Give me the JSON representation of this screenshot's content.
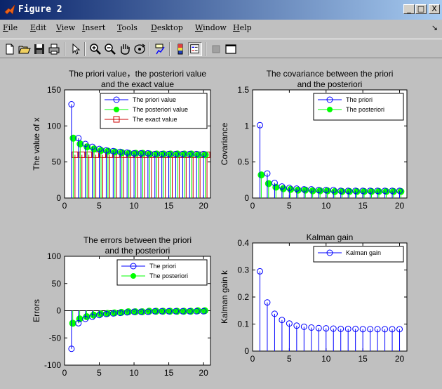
{
  "window": {
    "title": "Figure 2",
    "buttons": {
      "minimize": "_",
      "maximize": "□",
      "close": "X"
    }
  },
  "menu": {
    "items": [
      {
        "first": "F",
        "rest": "ile"
      },
      {
        "first": "E",
        "rest": "dit"
      },
      {
        "first": "V",
        "rest": "iew"
      },
      {
        "first": "I",
        "rest": "nsert"
      },
      {
        "first": "T",
        "rest": "ools"
      },
      {
        "first": "D",
        "rest": "esktop"
      },
      {
        "first": "W",
        "rest": "indow"
      },
      {
        "first": "H",
        "rest": "elp"
      }
    ],
    "overflow": "↘"
  },
  "toolbar": {
    "icons": [
      "new-file-icon",
      "open-folder-icon",
      "save-icon",
      "print-icon",
      "pointer-icon",
      "zoom-in-icon",
      "zoom-out-icon",
      "pan-hand-icon",
      "rotate-3d-icon",
      "data-cursor-icon",
      "colorbar-icon",
      "legend-icon",
      "grid-icon",
      "plot-tools-icon"
    ]
  },
  "colors": {
    "priori": "#0000ff",
    "posteriori": "#00ff00",
    "exact": "#cc0000",
    "kalman": "#0000ff"
  },
  "chart_data": [
    {
      "type": "scatter",
      "subtype": "stem",
      "title": [
        "The priori value，the posteriori value",
        "and the exact value"
      ],
      "xlabel": "",
      "ylabel": "The value of x",
      "xlim": [
        0,
        21
      ],
      "ylim": [
        0,
        150
      ],
      "xticks": [
        "0",
        "5",
        "10",
        "15",
        "20"
      ],
      "yticks": [
        "0",
        "50",
        "100",
        "150"
      ],
      "legend": {
        "placement": "top-right",
        "entries": [
          "The priori value",
          "The posteriori value",
          "The exact value"
        ]
      },
      "x": [
        1,
        2,
        3,
        4,
        5,
        6,
        7,
        8,
        9,
        10,
        11,
        12,
        13,
        14,
        15,
        16,
        17,
        18,
        19,
        20
      ],
      "series": [
        {
          "name": "The priori value",
          "marker": "circle",
          "color": "#0000ff",
          "values": [
            130,
            83,
            75,
            71,
            68,
            66,
            65,
            64,
            63,
            62,
            62,
            62,
            61,
            61,
            61,
            61,
            61,
            61,
            61,
            61
          ]
        },
        {
          "name": "The posteriori value",
          "marker": "filled-circle",
          "color": "#00ff00",
          "values": [
            83,
            75,
            71,
            68,
            66,
            65,
            64,
            63,
            62,
            62,
            62,
            61,
            61,
            61,
            61,
            61,
            61,
            61,
            60,
            60
          ]
        },
        {
          "name": "The exact value",
          "marker": "square",
          "color": "#cc0000",
          "values": [
            60,
            60,
            60,
            60,
            60,
            60,
            60,
            60,
            60,
            60,
            60,
            60,
            60,
            60,
            60,
            60,
            60,
            60,
            60,
            60
          ]
        }
      ]
    },
    {
      "type": "scatter",
      "subtype": "stem",
      "title": [
        "The covariance between the priori",
        "and the posteriori"
      ],
      "xlabel": "",
      "ylabel": "Covariance",
      "xlim": [
        0,
        21
      ],
      "ylim": [
        0,
        1.5
      ],
      "xticks": [
        "0",
        "5",
        "10",
        "15",
        "20"
      ],
      "yticks": [
        "0",
        "0.5",
        "1",
        "1.5"
      ],
      "legend": {
        "placement": "top-right",
        "entries": [
          "The priori",
          "The posteriori"
        ]
      },
      "x": [
        1,
        2,
        3,
        4,
        5,
        6,
        7,
        8,
        9,
        10,
        11,
        12,
        13,
        14,
        15,
        16,
        17,
        18,
        19,
        20
      ],
      "series": [
        {
          "name": "The priori",
          "marker": "circle",
          "color": "#0000ff",
          "values": [
            1.01,
            0.34,
            0.21,
            0.16,
            0.14,
            0.13,
            0.12,
            0.12,
            0.11,
            0.11,
            0.11,
            0.1,
            0.1,
            0.1,
            0.1,
            0.1,
            0.1,
            0.1,
            0.1,
            0.1
          ]
        },
        {
          "name": "The posteriori",
          "marker": "filled-circle",
          "color": "#00ff00",
          "values": [
            0.32,
            0.2,
            0.15,
            0.13,
            0.12,
            0.11,
            0.11,
            0.1,
            0.1,
            0.1,
            0.09,
            0.09,
            0.09,
            0.09,
            0.09,
            0.09,
            0.09,
            0.09,
            0.09,
            0.09
          ]
        }
      ]
    },
    {
      "type": "scatter",
      "subtype": "stem",
      "title": [
        "The errors between the priori",
        "and the posteriori"
      ],
      "xlabel": "",
      "ylabel": "Errors",
      "xlim": [
        0,
        21
      ],
      "ylim": [
        -100,
        100
      ],
      "xticks": [
        "0",
        "5",
        "10",
        "15",
        "20"
      ],
      "yticks": [
        "-100",
        "-50",
        "0",
        "50",
        "100"
      ],
      "legend": {
        "placement": "top-right",
        "entries": [
          "The priori",
          "The posteriori"
        ]
      },
      "x": [
        1,
        2,
        3,
        4,
        5,
        6,
        7,
        8,
        9,
        10,
        11,
        12,
        13,
        14,
        15,
        16,
        17,
        18,
        19,
        20
      ],
      "series": [
        {
          "name": "The priori",
          "marker": "circle",
          "color": "#0000ff",
          "values": [
            -70,
            -23,
            -15,
            -11,
            -8,
            -6,
            -5,
            -4,
            -3,
            -2,
            -2,
            -2,
            -1,
            -1,
            -1,
            -1,
            -1,
            -1,
            -1,
            -1
          ]
        },
        {
          "name": "The posteriori",
          "marker": "filled-circle",
          "color": "#00ff00",
          "values": [
            -23,
            -15,
            -11,
            -8,
            -6,
            -5,
            -4,
            -3,
            -2,
            -2,
            -2,
            -1,
            -1,
            -1,
            -1,
            -1,
            -1,
            -1,
            0,
            0
          ]
        }
      ]
    },
    {
      "type": "scatter",
      "subtype": "stem",
      "title": [
        "Kalman gain"
      ],
      "xlabel": "",
      "ylabel": "Kalman gain k",
      "xlim": [
        0,
        21
      ],
      "ylim": [
        0,
        0.4
      ],
      "xticks": [
        "0",
        "5",
        "10",
        "15",
        "20"
      ],
      "yticks": [
        "0",
        "0.1",
        "0.2",
        "0.3",
        "0.4"
      ],
      "legend": {
        "placement": "top-right",
        "entries": [
          "Kalman gain"
        ]
      },
      "x": [
        1,
        2,
        3,
        4,
        5,
        6,
        7,
        8,
        9,
        10,
        11,
        12,
        13,
        14,
        15,
        16,
        17,
        18,
        19,
        20
      ],
      "series": [
        {
          "name": "Kalman gain",
          "marker": "circle",
          "color": "#0000ff",
          "values": [
            0.295,
            0.18,
            0.138,
            0.115,
            0.102,
            0.094,
            0.09,
            0.087,
            0.085,
            0.084,
            0.083,
            0.082,
            0.082,
            0.082,
            0.081,
            0.081,
            0.081,
            0.081,
            0.081,
            0.081
          ]
        }
      ]
    }
  ]
}
